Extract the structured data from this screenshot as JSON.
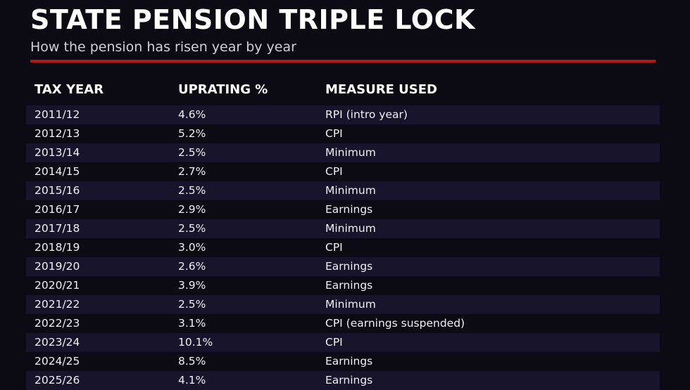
{
  "header": {
    "title": "STATE PENSION TRIPLE LOCK",
    "subtitle": "How the pension has risen year by year"
  },
  "table": {
    "columns": [
      "TAX YEAR",
      "UPRATING %",
      "MEASURE USED"
    ],
    "rows": [
      [
        "2011/12",
        "4.6%",
        "RPI (intro year)"
      ],
      [
        "2012/13",
        "5.2%",
        "CPI"
      ],
      [
        "2013/14",
        "2.5%",
        "Minimum"
      ],
      [
        "2014/15",
        "2.7%",
        "CPI"
      ],
      [
        "2015/16",
        "2.5%",
        "Minimum"
      ],
      [
        "2016/17",
        "2.9%",
        "Earnings"
      ],
      [
        "2017/18",
        "2.5%",
        "Minimum"
      ],
      [
        "2018/19",
        "3.0%",
        "CPI"
      ],
      [
        "2019/20",
        "2.6%",
        "Earnings"
      ],
      [
        "2020/21",
        "3.9%",
        "Earnings"
      ],
      [
        "2021/22",
        "2.5%",
        "Minimum"
      ],
      [
        "2022/23",
        "3.1%",
        "CPI (earnings suspended)"
      ],
      [
        "2023/24",
        "10.1%",
        "CPI"
      ],
      [
        "2024/25",
        "8.5%",
        "Earnings"
      ],
      [
        "2025/26",
        "4.1%",
        "Earnings"
      ]
    ]
  }
}
